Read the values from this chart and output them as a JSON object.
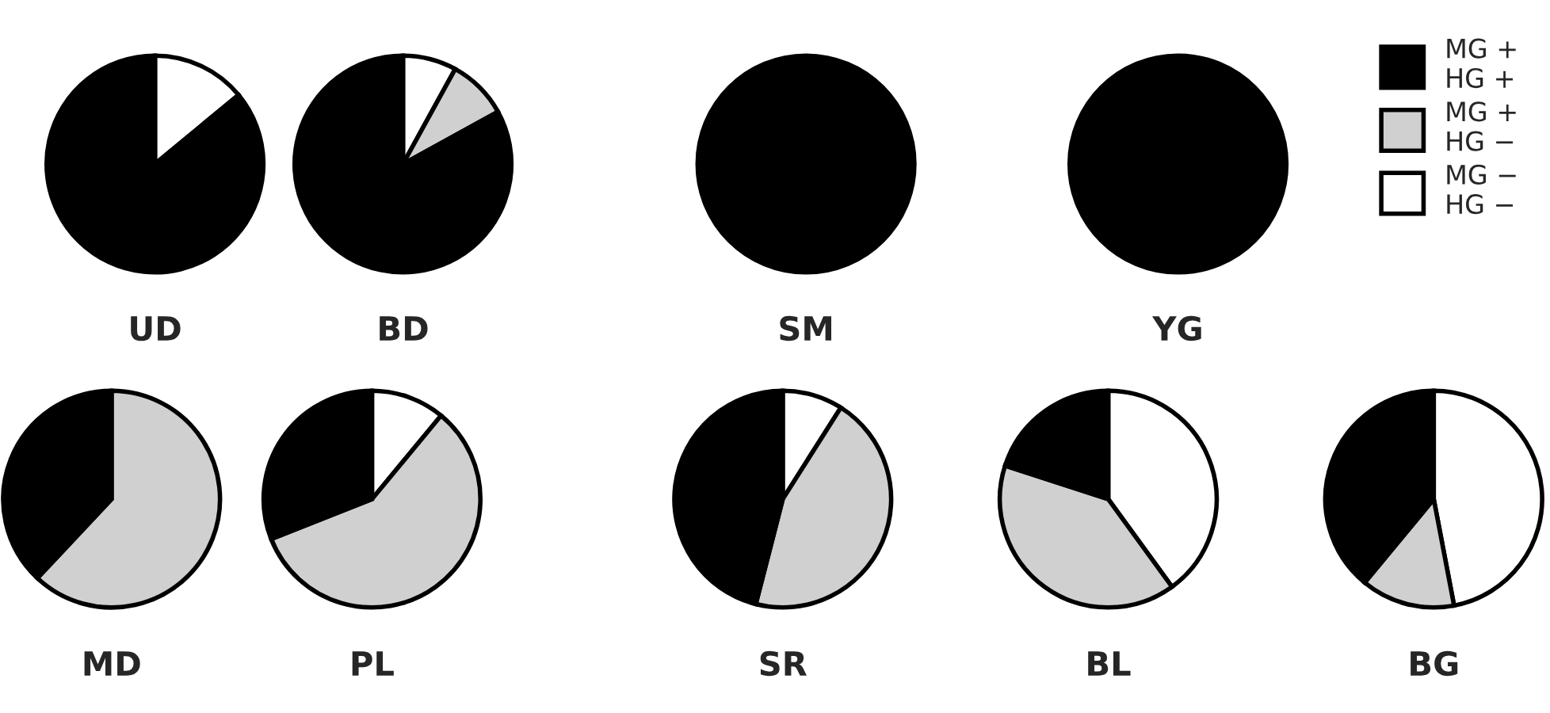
{
  "chart_data": [
    {
      "type": "pie",
      "title": "UD",
      "categories": [
        null,
        null
      ],
      "values": [
        14,
        86
      ],
      "colors": [
        "#ffffff",
        "#000000"
      ]
    },
    {
      "type": "pie",
      "title": "BD",
      "categories": [
        "MG −\nHG −",
        "MG +\nHG −",
        "MG +\nHG +"
      ],
      "values": [
        8,
        9,
        83
      ],
      "colors": [
        "#ffffff",
        "#d0d0d0",
        "#000000"
      ],
      "legend": "top right"
    },
    {
      "type": "pie",
      "title": "SM",
      "categories": [
        null
      ],
      "values": [
        100
      ],
      "colors": [
        "#000000"
      ]
    },
    {
      "type": "pie",
      "title": "YG",
      "categories": [
        null
      ],
      "values": [
        100
      ],
      "colors": [
        "#000000"
      ]
    },
    {
      "type": "pie",
      "title": "MD",
      "categories": [
        null,
        null
      ],
      "values": [
        62,
        38
      ],
      "colors": [
        "#d0d0d0",
        "#000000"
      ]
    },
    {
      "type": "pie",
      "title": "PL",
      "categories": [
        null,
        null,
        null
      ],
      "values": [
        11,
        58,
        31
      ],
      "colors": [
        "#ffffff",
        "#d0d0d0",
        "#000000"
      ]
    },
    {
      "type": "pie",
      "title": "SR",
      "categories": [
        null,
        null,
        null
      ],
      "values": [
        9,
        45,
        46
      ],
      "colors": [
        "#ffffff",
        "#d0d0d0",
        "#000000"
      ]
    },
    {
      "type": "pie",
      "title": "BL",
      "categories": [
        null,
        null,
        null
      ],
      "values": [
        40,
        40,
        20
      ],
      "colors": [
        "#ffffff",
        "#d0d0d0",
        "#000000"
      ]
    },
    {
      "type": "pie",
      "title": "BG",
      "categories": [
        null,
        null,
        null
      ],
      "values": [
        47,
        14,
        39
      ],
      "colors": [
        "#ffffff",
        "#d0d0d0",
        "#000000"
      ]
    }
  ]
}
